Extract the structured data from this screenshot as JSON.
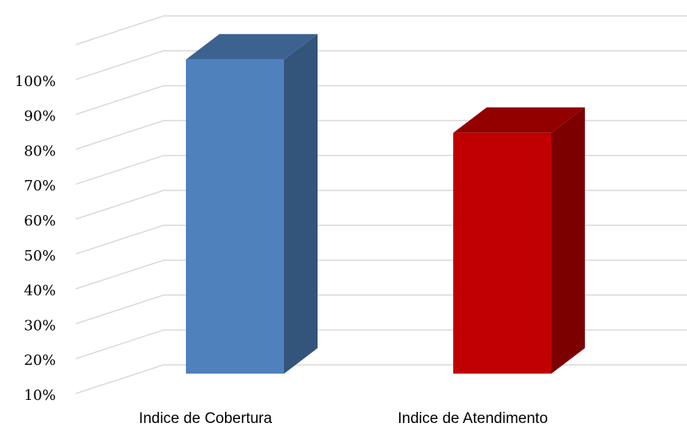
{
  "chart_data": {
    "type": "bar3d",
    "categories": [
      "Indice de Cobertura",
      "Indice de Atendimento"
    ],
    "values": [
      100,
      79
    ],
    "colors": [
      "#4f81bd",
      "#c00000"
    ],
    "ylim": [
      10,
      110
    ],
    "yticks": [
      {
        "value": 10,
        "label": "10%"
      },
      {
        "value": 20,
        "label": "20%"
      },
      {
        "value": 30,
        "label": "30%"
      },
      {
        "value": 40,
        "label": "40%"
      },
      {
        "value": 50,
        "label": "50%"
      },
      {
        "value": 60,
        "label": "60%"
      },
      {
        "value": 70,
        "label": "70%"
      },
      {
        "value": 80,
        "label": "80%"
      },
      {
        "value": 90,
        "label": "90%"
      },
      {
        "value": 100,
        "label": "100%"
      }
    ],
    "grid": true
  }
}
